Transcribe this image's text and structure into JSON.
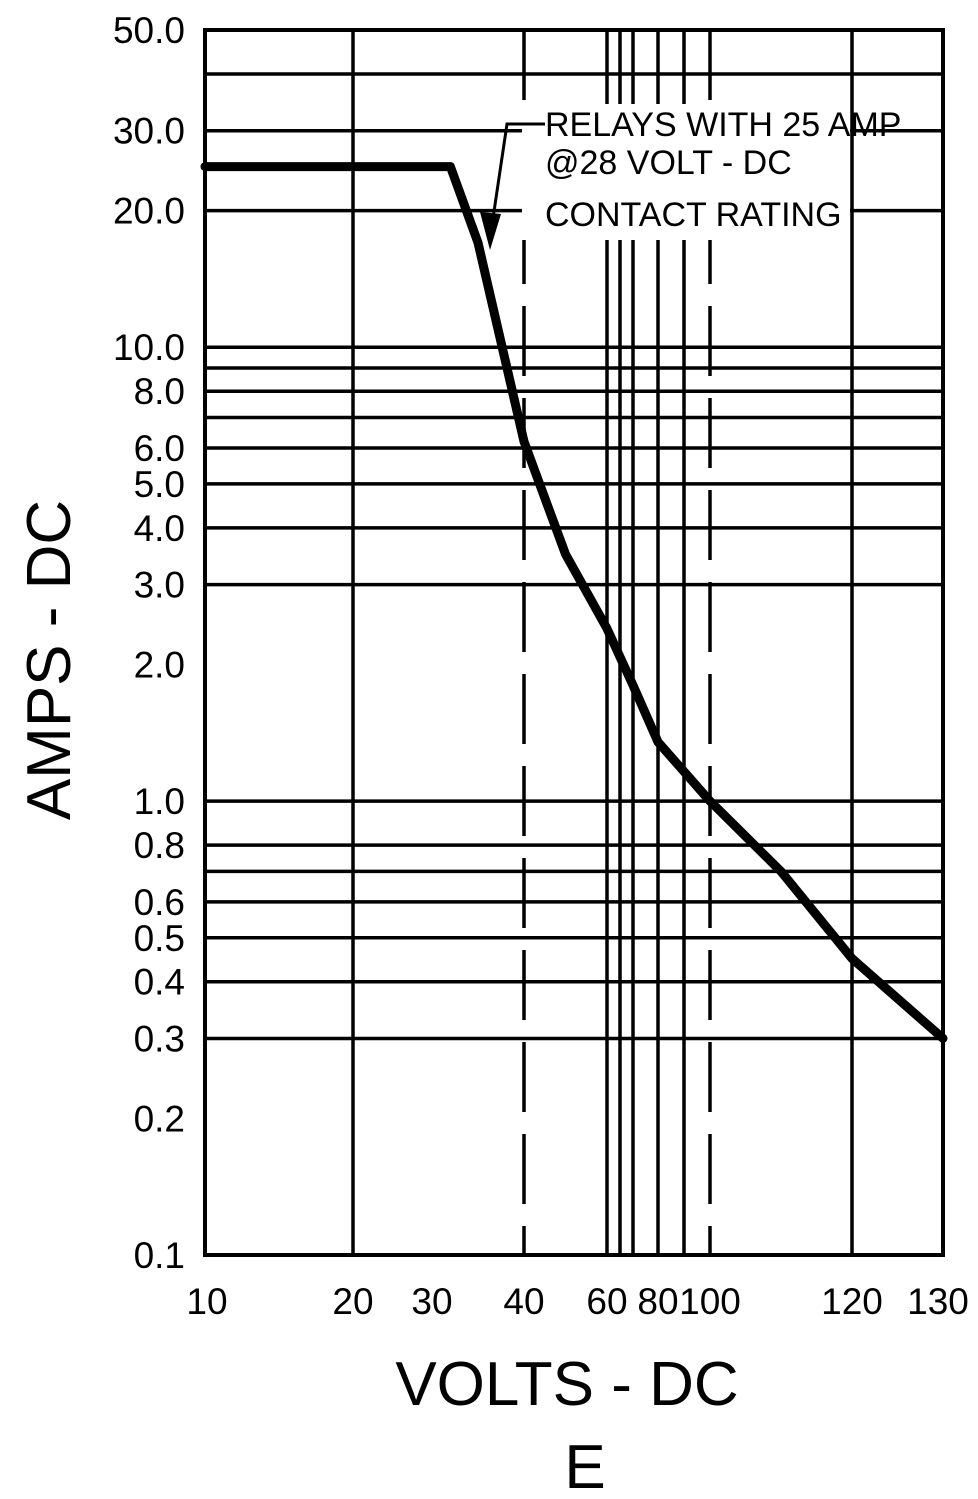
{
  "chart_data": {
    "type": "line",
    "title": "",
    "xlabel": "VOLTS - DC",
    "ylabel": "AMPS - DC",
    "figure_label": "E",
    "y_scale": "log",
    "ylim": [
      0.1,
      50.0
    ],
    "grid": true,
    "y_ticks": [
      {
        "value": 50.0,
        "label": "50.0"
      },
      {
        "value": 30.0,
        "label": "30.0"
      },
      {
        "value": 20.0,
        "label": "20.0"
      },
      {
        "value": 10.0,
        "label": "10.0"
      },
      {
        "value": 8.0,
        "label": "8.0"
      },
      {
        "value": 6.0,
        "label": "6.0"
      },
      {
        "value": 5.0,
        "label": "5.0"
      },
      {
        "value": 4.0,
        "label": "4.0"
      },
      {
        "value": 3.0,
        "label": "3.0"
      },
      {
        "value": 2.0,
        "label": "2.0"
      },
      {
        "value": 1.0,
        "label": "1.0"
      },
      {
        "value": 0.8,
        "label": "0.8"
      },
      {
        "value": 0.6,
        "label": "0.6"
      },
      {
        "value": 0.5,
        "label": "0.5"
      },
      {
        "value": 0.4,
        "label": "0.4"
      },
      {
        "value": 0.3,
        "label": "0.3"
      },
      {
        "value": 0.2,
        "label": "0.2"
      },
      {
        "value": 0.1,
        "label": "0.1"
      }
    ],
    "y_gridlines": [
      50,
      40,
      30,
      20,
      10,
      9,
      8,
      7,
      6,
      5,
      4,
      3,
      1,
      0.8,
      0.7,
      0.6,
      0.5,
      0.4,
      0.3
    ],
    "x_ticks": [
      {
        "value": 10,
        "label": "10"
      },
      {
        "value": 20,
        "label": "20"
      },
      {
        "value": 30,
        "label": "30"
      },
      {
        "value": 40,
        "label": "40"
      },
      {
        "value": 60,
        "label": "60"
      },
      {
        "value": 80,
        "label": "80"
      },
      {
        "value": 100,
        "label": "100"
      },
      {
        "value": 120,
        "label": "120"
      },
      {
        "value": 130,
        "label": "130"
      }
    ],
    "x_gridlines": [
      {
        "value": 10,
        "style": "solid"
      },
      {
        "value": 20,
        "style": "solid"
      },
      {
        "value": 40,
        "style": "dashed"
      },
      {
        "value": 60,
        "style": "solid"
      },
      {
        "value": 65,
        "style": "solid"
      },
      {
        "value": 70,
        "style": "solid"
      },
      {
        "value": 80,
        "style": "solid"
      },
      {
        "value": 90,
        "style": "solid"
      },
      {
        "value": 100,
        "style": "dashed"
      },
      {
        "value": 120,
        "style": "solid"
      },
      {
        "value": 130,
        "style": "solid"
      }
    ],
    "series": [
      {
        "name": "RELAYS WITH 25 AMP @28 VOLT - DC CONTACT RATING",
        "points": [
          {
            "x": 10,
            "y": 25
          },
          {
            "x": 32,
            "y": 25
          },
          {
            "x": 35,
            "y": 17
          },
          {
            "x": 40,
            "y": 6.2
          },
          {
            "x": 50,
            "y": 3.5
          },
          {
            "x": 60,
            "y": 2.4
          },
          {
            "x": 70,
            "y": 1.8
          },
          {
            "x": 80,
            "y": 1.35
          },
          {
            "x": 100,
            "y": 1.0
          },
          {
            "x": 110,
            "y": 0.7
          },
          {
            "x": 120,
            "y": 0.45
          },
          {
            "x": 130,
            "y": 0.3
          }
        ]
      }
    ],
    "annotation": {
      "lines": [
        "RELAYS WITH 25 AMP",
        "@28 VOLT - DC",
        "CONTACT RATING"
      ]
    }
  }
}
